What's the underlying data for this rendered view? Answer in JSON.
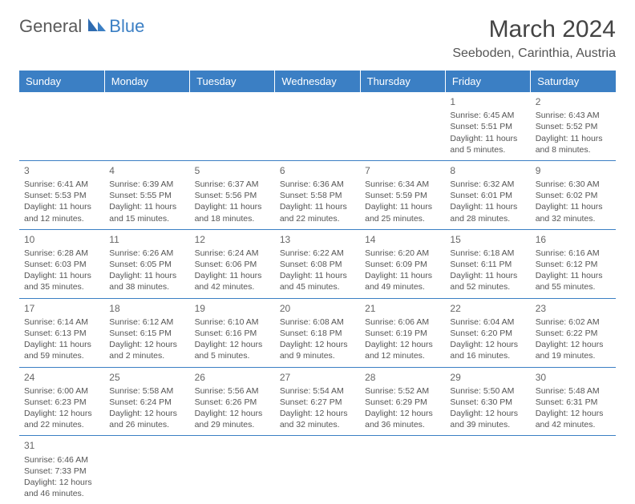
{
  "logo": {
    "part1": "General",
    "part2": "Blue"
  },
  "title": "March 2024",
  "location": "Seeboden, Carinthia, Austria",
  "colors": {
    "header_bg": "#3b7fc4",
    "header_text": "#ffffff",
    "border": "#3b7fc4",
    "text": "#555555",
    "logo_gray": "#5a5a5a",
    "logo_blue": "#3b7fc4"
  },
  "weekdays": [
    "Sunday",
    "Monday",
    "Tuesday",
    "Wednesday",
    "Thursday",
    "Friday",
    "Saturday"
  ],
  "weeks": [
    [
      null,
      null,
      null,
      null,
      null,
      {
        "d": "1",
        "sr": "Sunrise: 6:45 AM",
        "ss": "Sunset: 5:51 PM",
        "dl": "Daylight: 11 hours and 5 minutes."
      },
      {
        "d": "2",
        "sr": "Sunrise: 6:43 AM",
        "ss": "Sunset: 5:52 PM",
        "dl": "Daylight: 11 hours and 8 minutes."
      }
    ],
    [
      {
        "d": "3",
        "sr": "Sunrise: 6:41 AM",
        "ss": "Sunset: 5:53 PM",
        "dl": "Daylight: 11 hours and 12 minutes."
      },
      {
        "d": "4",
        "sr": "Sunrise: 6:39 AM",
        "ss": "Sunset: 5:55 PM",
        "dl": "Daylight: 11 hours and 15 minutes."
      },
      {
        "d": "5",
        "sr": "Sunrise: 6:37 AM",
        "ss": "Sunset: 5:56 PM",
        "dl": "Daylight: 11 hours and 18 minutes."
      },
      {
        "d": "6",
        "sr": "Sunrise: 6:36 AM",
        "ss": "Sunset: 5:58 PM",
        "dl": "Daylight: 11 hours and 22 minutes."
      },
      {
        "d": "7",
        "sr": "Sunrise: 6:34 AM",
        "ss": "Sunset: 5:59 PM",
        "dl": "Daylight: 11 hours and 25 minutes."
      },
      {
        "d": "8",
        "sr": "Sunrise: 6:32 AM",
        "ss": "Sunset: 6:01 PM",
        "dl": "Daylight: 11 hours and 28 minutes."
      },
      {
        "d": "9",
        "sr": "Sunrise: 6:30 AM",
        "ss": "Sunset: 6:02 PM",
        "dl": "Daylight: 11 hours and 32 minutes."
      }
    ],
    [
      {
        "d": "10",
        "sr": "Sunrise: 6:28 AM",
        "ss": "Sunset: 6:03 PM",
        "dl": "Daylight: 11 hours and 35 minutes."
      },
      {
        "d": "11",
        "sr": "Sunrise: 6:26 AM",
        "ss": "Sunset: 6:05 PM",
        "dl": "Daylight: 11 hours and 38 minutes."
      },
      {
        "d": "12",
        "sr": "Sunrise: 6:24 AM",
        "ss": "Sunset: 6:06 PM",
        "dl": "Daylight: 11 hours and 42 minutes."
      },
      {
        "d": "13",
        "sr": "Sunrise: 6:22 AM",
        "ss": "Sunset: 6:08 PM",
        "dl": "Daylight: 11 hours and 45 minutes."
      },
      {
        "d": "14",
        "sr": "Sunrise: 6:20 AM",
        "ss": "Sunset: 6:09 PM",
        "dl": "Daylight: 11 hours and 49 minutes."
      },
      {
        "d": "15",
        "sr": "Sunrise: 6:18 AM",
        "ss": "Sunset: 6:11 PM",
        "dl": "Daylight: 11 hours and 52 minutes."
      },
      {
        "d": "16",
        "sr": "Sunrise: 6:16 AM",
        "ss": "Sunset: 6:12 PM",
        "dl": "Daylight: 11 hours and 55 minutes."
      }
    ],
    [
      {
        "d": "17",
        "sr": "Sunrise: 6:14 AM",
        "ss": "Sunset: 6:13 PM",
        "dl": "Daylight: 11 hours and 59 minutes."
      },
      {
        "d": "18",
        "sr": "Sunrise: 6:12 AM",
        "ss": "Sunset: 6:15 PM",
        "dl": "Daylight: 12 hours and 2 minutes."
      },
      {
        "d": "19",
        "sr": "Sunrise: 6:10 AM",
        "ss": "Sunset: 6:16 PM",
        "dl": "Daylight: 12 hours and 5 minutes."
      },
      {
        "d": "20",
        "sr": "Sunrise: 6:08 AM",
        "ss": "Sunset: 6:18 PM",
        "dl": "Daylight: 12 hours and 9 minutes."
      },
      {
        "d": "21",
        "sr": "Sunrise: 6:06 AM",
        "ss": "Sunset: 6:19 PM",
        "dl": "Daylight: 12 hours and 12 minutes."
      },
      {
        "d": "22",
        "sr": "Sunrise: 6:04 AM",
        "ss": "Sunset: 6:20 PM",
        "dl": "Daylight: 12 hours and 16 minutes."
      },
      {
        "d": "23",
        "sr": "Sunrise: 6:02 AM",
        "ss": "Sunset: 6:22 PM",
        "dl": "Daylight: 12 hours and 19 minutes."
      }
    ],
    [
      {
        "d": "24",
        "sr": "Sunrise: 6:00 AM",
        "ss": "Sunset: 6:23 PM",
        "dl": "Daylight: 12 hours and 22 minutes."
      },
      {
        "d": "25",
        "sr": "Sunrise: 5:58 AM",
        "ss": "Sunset: 6:24 PM",
        "dl": "Daylight: 12 hours and 26 minutes."
      },
      {
        "d": "26",
        "sr": "Sunrise: 5:56 AM",
        "ss": "Sunset: 6:26 PM",
        "dl": "Daylight: 12 hours and 29 minutes."
      },
      {
        "d": "27",
        "sr": "Sunrise: 5:54 AM",
        "ss": "Sunset: 6:27 PM",
        "dl": "Daylight: 12 hours and 32 minutes."
      },
      {
        "d": "28",
        "sr": "Sunrise: 5:52 AM",
        "ss": "Sunset: 6:29 PM",
        "dl": "Daylight: 12 hours and 36 minutes."
      },
      {
        "d": "29",
        "sr": "Sunrise: 5:50 AM",
        "ss": "Sunset: 6:30 PM",
        "dl": "Daylight: 12 hours and 39 minutes."
      },
      {
        "d": "30",
        "sr": "Sunrise: 5:48 AM",
        "ss": "Sunset: 6:31 PM",
        "dl": "Daylight: 12 hours and 42 minutes."
      }
    ],
    [
      {
        "d": "31",
        "sr": "Sunrise: 6:46 AM",
        "ss": "Sunset: 7:33 PM",
        "dl": "Daylight: 12 hours and 46 minutes."
      },
      null,
      null,
      null,
      null,
      null,
      null
    ]
  ]
}
